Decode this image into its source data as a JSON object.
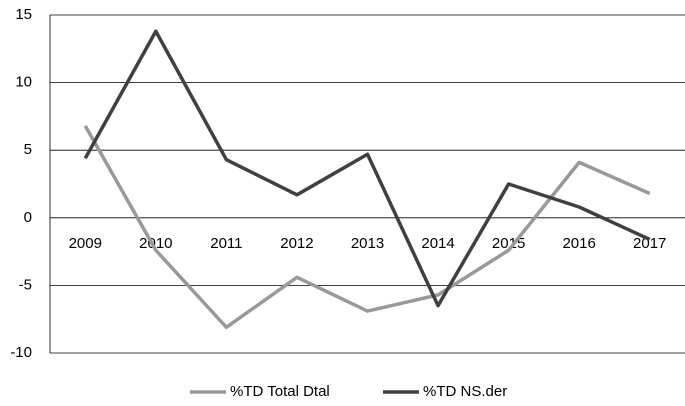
{
  "chart_data": {
    "type": "line",
    "categories": [
      "2009",
      "2010",
      "2011",
      "2012",
      "2013",
      "2014",
      "2015",
      "2016",
      "2017"
    ],
    "series": [
      {
        "name": "%TD Total Dtal",
        "color": "#999999",
        "values": [
          6.8,
          -2.4,
          -8.1,
          -4.4,
          -6.9,
          -5.7,
          -2.4,
          4.1,
          1.8
        ]
      },
      {
        "name": "%TD NS.der",
        "color": "#404040",
        "values": [
          4.4,
          13.8,
          4.3,
          1.7,
          4.7,
          -6.5,
          2.5,
          0.8,
          -1.6
        ]
      }
    ],
    "ylim": [
      -10,
      15
    ],
    "yticks": [
      -10,
      -5,
      0,
      5,
      10,
      15
    ],
    "grid": true,
    "legend": "bottom"
  }
}
